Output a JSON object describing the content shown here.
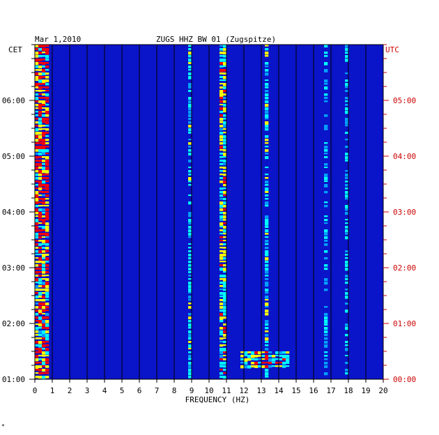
{
  "header": {
    "date": "Mar 1,2010",
    "station": "ZUGS HHZ BW 01 (Zugspitze)"
  },
  "chart_data": {
    "type": "heatmap",
    "title": "ZUGS HHZ BW 01 (Zugspitze)",
    "subtitle": "Mar 1,2010",
    "xlabel": "FREQUENCY (HZ)",
    "ylabel_left": "CET",
    "ylabel_right": "UTC",
    "xlim": [
      0,
      20
    ],
    "x_ticks": [
      "0",
      "1",
      "2",
      "3",
      "4",
      "5",
      "6",
      "7",
      "8",
      "9",
      "10",
      "11",
      "12",
      "13",
      "14",
      "15",
      "16",
      "17",
      "18",
      "19",
      "20"
    ],
    "y_ticks_left": [
      "06:00",
      "05:00",
      "04:00",
      "03:00",
      "02:00",
      "01:00"
    ],
    "y_ticks_right": [
      "05:00",
      "04:00",
      "03:00",
      "02:00",
      "01:00",
      "00:00"
    ],
    "time_range_cet_hours": [
      1,
      7
    ],
    "grid": true,
    "colormap": [
      "#000080",
      "#0000ff",
      "#00a0ff",
      "#00ffff",
      "#ffff00",
      "#ff0000"
    ],
    "background_color": "#0a14c8",
    "features": [
      {
        "label": "low-frequency band",
        "freq_hz": [
          0.1,
          0.8
        ],
        "level": "high"
      },
      {
        "label": "line",
        "freq_hz": 8.9,
        "level": "medium"
      },
      {
        "label": "line",
        "freq_hz": 10.8,
        "level": "high"
      },
      {
        "label": "line",
        "freq_hz": 13.3,
        "level": "medium"
      },
      {
        "label": "line",
        "freq_hz": 16.7,
        "level": "low"
      },
      {
        "label": "line",
        "freq_hz": 17.9,
        "level": "low"
      },
      {
        "label": "burst",
        "freq_hz": [
          11.8,
          14.5
        ],
        "time_cet": [
          1.2,
          1.5
        ],
        "level": "medium"
      }
    ]
  },
  "footer": {
    "mark": "*"
  }
}
